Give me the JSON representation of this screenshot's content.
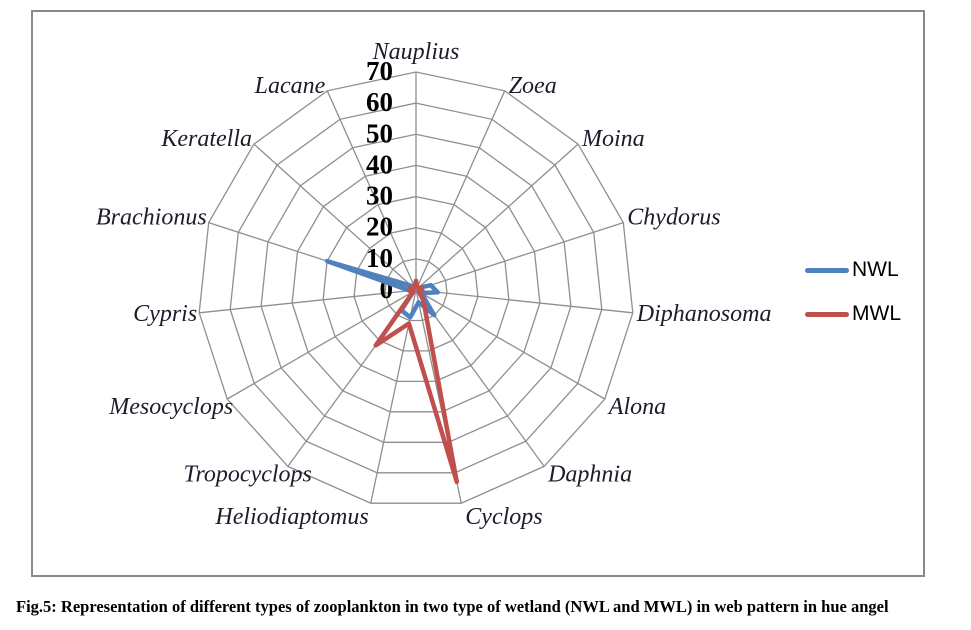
{
  "figure": {
    "caption": "Fig.5: Representation of different types of zooplankton in two type of wetland (NWL and MWL) in web pattern in hue angel"
  },
  "legend": {
    "position": "right",
    "items": [
      {
        "label": "NWL",
        "color": "#4F81BD"
      },
      {
        "label": "MWL",
        "color": "#C0504D"
      }
    ]
  },
  "chart_data": {
    "type": "radar",
    "title": "",
    "categories": [
      "Nauplius",
      "Zoea",
      "Moina",
      "Chydorus",
      "Diphanosoma",
      "Alona",
      "Daphnia",
      "Cyclops",
      "Heliodiaptomus",
      "Tropocyclops",
      "Mesocyclops",
      "Cypris",
      "Brachionus",
      "Keratella",
      "Lacane"
    ],
    "series": [
      {
        "name": "NWL",
        "color": "#4F81BD",
        "values": [
          2,
          1,
          1,
          5,
          7,
          2,
          10,
          4,
          9,
          8,
          1,
          2,
          30,
          2,
          1
        ]
      },
      {
        "name": "MWL",
        "color": "#C0504D",
        "values": [
          3,
          1,
          1,
          2,
          2,
          1,
          4,
          63,
          11,
          22,
          1,
          2,
          2,
          1,
          1
        ]
      }
    ],
    "radial_axis": {
      "min": 0,
      "max": 70,
      "step": 10,
      "tick_labels": [
        "0",
        "10",
        "20",
        "30",
        "40",
        "50",
        "60",
        "70"
      ]
    },
    "grid": true,
    "legend_position": "right"
  },
  "colors": {
    "grid": "#8f8f8f",
    "plot_border": "#8a8a8a",
    "category_label": "#1c1c2b",
    "tick_label": "#000000"
  }
}
